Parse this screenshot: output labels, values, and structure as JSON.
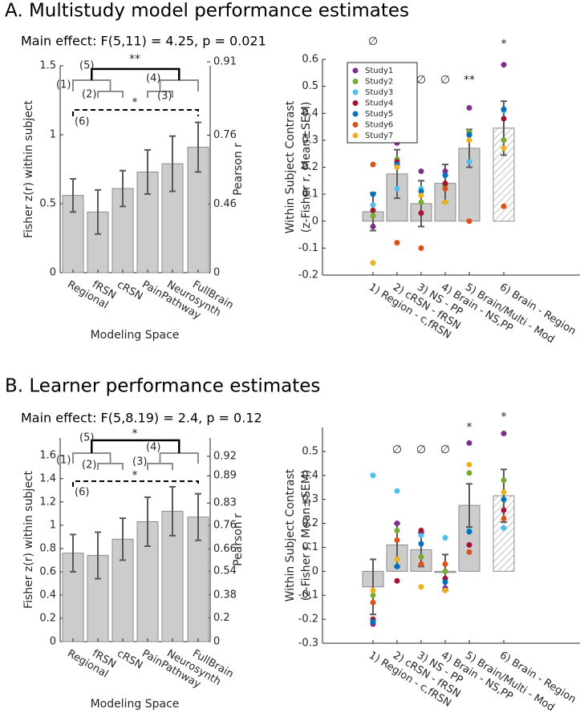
{
  "chart_data": [
    {
      "type": "bar",
      "title": "A. Multistudy model performance estimates",
      "subtitle": "Main effect: F(5,11) = 4.25, p = 0.021",
      "xlabel": "Modeling Space",
      "ylabel": "Fisher z(r) within subject",
      "y2label": "Pearson r",
      "categories": [
        "Regional",
        "fRSN",
        "cRSN",
        "PainPathway",
        "Neurosynth",
        "FullBrain"
      ],
      "values": [
        0.56,
        0.44,
        0.61,
        0.73,
        0.79,
        0.91
      ],
      "errors": [
        0.12,
        0.16,
        0.13,
        0.16,
        0.2,
        0.18
      ],
      "color": "#cccccc",
      "ylim": [
        0,
        1.5
      ],
      "yticks": [
        0,
        0.5,
        1,
        1.5
      ],
      "y2scale": "atanh",
      "y2lim": [
        0,
        0.905
      ],
      "y2ticks": [
        0,
        0.46,
        0.76,
        0.91
      ],
      "bracket_labels": [
        "(1)",
        "(2)",
        "(3)",
        "(4)",
        "(5)",
        "(6)"
      ],
      "bracket_stars": [
        "**",
        "*"
      ]
    },
    {
      "type": "bar",
      "ylabel": [
        "Within Subject Contrast",
        "(z-Fisher r, Mean±SEM)"
      ],
      "categories": [
        "1) Region - c,fRSN",
        "2) cRSN - fRSN",
        "3) NS - PP",
        "4) Brain - NS,PP",
        "5) Brain/Multi - Mod",
        "6) Brain - Region"
      ],
      "values": [
        0.035,
        0.175,
        0.065,
        0.14,
        0.27,
        0.345
      ],
      "errors": [
        0.07,
        0.09,
        0.085,
        0.07,
        0.07,
        0.1
      ],
      "hatched": [
        false,
        false,
        false,
        false,
        false,
        true
      ],
      "sig_labels": [
        "∅",
        null,
        "∅",
        "∅",
        "**",
        "*"
      ],
      "color": "#cccccc",
      "ylim": [
        -0.2,
        0.6
      ],
      "yticks": [
        -0.2,
        -0.1,
        0,
        0.1,
        0.2,
        0.3,
        0.4,
        0.5,
        0.6
      ],
      "legend": true,
      "series": [
        {
          "name": "Study1",
          "color": "#7e2f8e",
          "values": [
            -0.02,
            0.29,
            0.185,
            0.185,
            0.42,
            0.58
          ]
        },
        {
          "name": "Study2",
          "color": "#77ac30",
          "values": [
            0.02,
            0.23,
            0.07,
            0.13,
            0.33,
            0.3
          ]
        },
        {
          "name": "Study3",
          "color": "#4dbeee",
          "values": [
            0.06,
            0.12,
            0.12,
            0.12,
            0.22,
            0.41
          ]
        },
        {
          "name": "Study4",
          "color": "#a2142f",
          "values": [
            0.04,
            0.22,
            0.03,
            0.14,
            0.32,
            0.38
          ]
        },
        {
          "name": "Study5",
          "color": "#0072bd",
          "values": [
            0.1,
            0.21,
            0.11,
            0.17,
            0.32,
            0.415
          ]
        },
        {
          "name": "Study6",
          "color": "#d95319",
          "values": [
            0.21,
            -0.08,
            -0.1,
            0.12,
            0.0,
            0.055
          ]
        },
        {
          "name": "Study7",
          "color": "#edb120",
          "values": [
            -0.155,
            0.2,
            0.095,
            0.07,
            0.3,
            0.27
          ]
        }
      ]
    },
    {
      "type": "bar",
      "title": "B. Learner performance estimates",
      "subtitle": "Main effect: F(5,8.19) = 2.4, p = 0.12",
      "xlabel": "Modeling Space",
      "ylabel": "Fisher z(r) within subject",
      "y2label": "Pearson r",
      "categories": [
        "Regional",
        "fRSN",
        "cRSN",
        "PainPathway",
        "Neurosynth",
        "FullBrain"
      ],
      "values": [
        0.76,
        0.74,
        0.88,
        1.03,
        1.12,
        1.07
      ],
      "errors": [
        0.16,
        0.2,
        0.18,
        0.21,
        0.21,
        0.2
      ],
      "color": "#cccccc",
      "ylim": [
        0,
        1.75
      ],
      "yticks": [
        0,
        0.2,
        0.4,
        0.6,
        0.8,
        1,
        1.2,
        1.4,
        1.6
      ],
      "y2scale": "atanh",
      "y2lim": [
        0,
        0.941
      ],
      "y2ticks": [
        0,
        0.2,
        0.38,
        0.54,
        0.66,
        0.76,
        0.83,
        0.89,
        0.92
      ],
      "bracket_labels": [
        "(1)",
        "(2)",
        "(3)",
        "(4)",
        "(5)",
        "(6)"
      ],
      "bracket_stars": [
        "*",
        "*"
      ]
    },
    {
      "type": "bar",
      "ylabel": [
        "Within Subject Contrast",
        "(z-Fisher r, Mean±SEM)"
      ],
      "categories": [
        "1) Region - c,fRSN",
        "2) cRSN - fRSN",
        "3) NS - PP",
        "4) Brain - NS,PP",
        "5) Brain/Multi - Mod",
        "6) Brain - Region"
      ],
      "values": [
        -0.065,
        0.11,
        0.09,
        -0.005,
        0.275,
        0.315
      ],
      "errors": [
        0.115,
        0.09,
        0.07,
        0.075,
        0.09,
        0.11
      ],
      "hatched": [
        false,
        false,
        false,
        false,
        false,
        true
      ],
      "sig_labels": [
        null,
        "∅",
        "∅",
        "∅",
        "*",
        "*"
      ],
      "color": "#cccccc",
      "ylim": [
        -0.3,
        0.6
      ],
      "yticks": [
        -0.3,
        -0.2,
        -0.1,
        0,
        0.1,
        0.2,
        0.3,
        0.4,
        0.5
      ],
      "legend": false,
      "series": [
        {
          "color": "#7e2f8e",
          "values": [
            -0.22,
            0.2,
            0.16,
            -0.07,
            0.535,
            0.575
          ]
        },
        {
          "color": "#77ac30",
          "values": [
            -0.1,
            0.17,
            0.06,
            0.0,
            0.41,
            0.38
          ]
        },
        {
          "color": "#4dbeee",
          "values": [
            0.4,
            0.335,
            0.15,
            0.14,
            0.17,
            0.18
          ]
        },
        {
          "color": "#a2142f",
          "values": [
            -0.2,
            -0.04,
            0.17,
            -0.03,
            0.11,
            0.255
          ]
        },
        {
          "color": "#0072bd",
          "values": [
            -0.21,
            0.02,
            0.115,
            -0.045,
            0.165,
            0.3
          ]
        },
        {
          "color": "#d95319",
          "values": [
            -0.13,
            0.13,
            0.03,
            0.03,
            0.08,
            0.22
          ]
        },
        {
          "color": "#edb120",
          "values": [
            -0.08,
            0.05,
            -0.065,
            -0.08,
            0.445,
            0.33
          ]
        }
      ]
    }
  ]
}
